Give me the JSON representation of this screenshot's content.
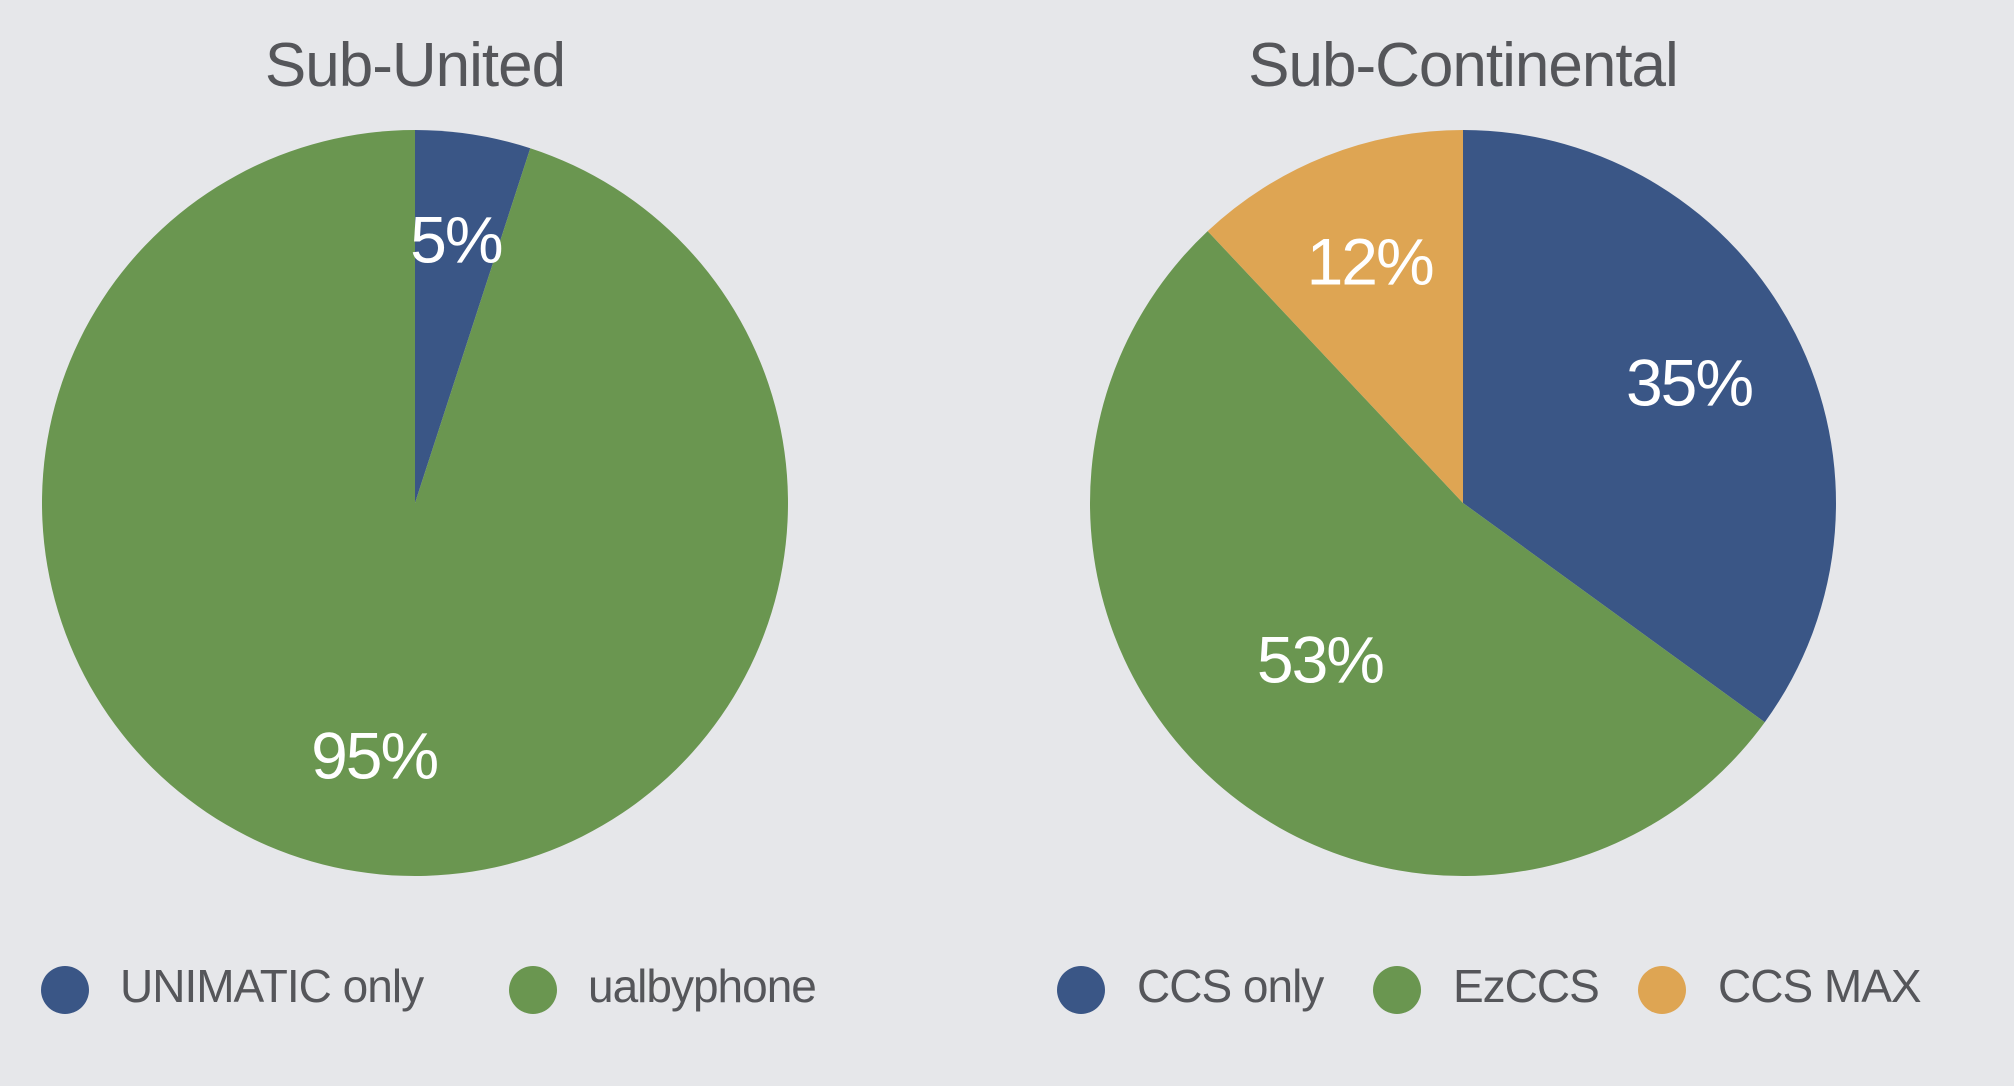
{
  "colors": {
    "background": "#e6e7ea",
    "blue": "#3a5686",
    "green": "#6a9650",
    "orange": "#dea553"
  },
  "chart_data": [
    {
      "type": "pie",
      "title": "Sub-United",
      "slices": [
        {
          "label": "UNIMATIC only",
          "value": 5,
          "display": "5%",
          "color": "#3a5686"
        },
        {
          "label": "ualbyphone",
          "value": 95,
          "display": "95%",
          "color": "#6a9650"
        }
      ],
      "legend": "bottom"
    },
    {
      "type": "pie",
      "title": "Sub-Continental",
      "slices": [
        {
          "label": "CCS only",
          "value": 35,
          "display": "35%",
          "color": "#3a5686"
        },
        {
          "label": "EzCCS",
          "value": 53,
          "display": "53%",
          "color": "#6a9650"
        },
        {
          "label": "CCS MAX",
          "value": 12,
          "display": "12%",
          "color": "#dea553"
        }
      ],
      "legend": "bottom"
    }
  ]
}
